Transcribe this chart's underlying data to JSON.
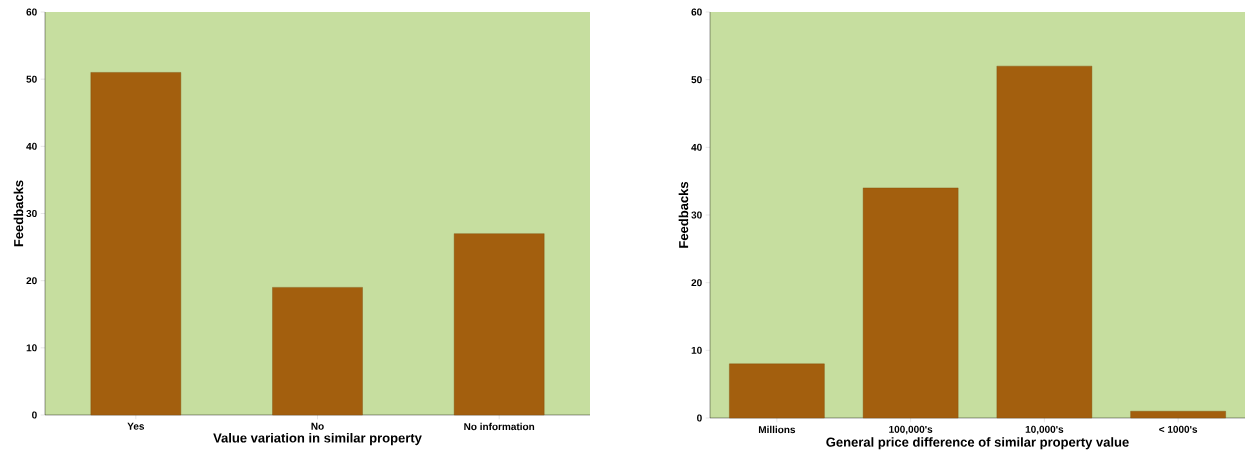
{
  "chart_data": [
    {
      "type": "bar",
      "categories": [
        "Yes",
        "No",
        "No information"
      ],
      "values": [
        51,
        19,
        27
      ],
      "color": "#a35f0e",
      "xlabel": "Value variation in similar property",
      "ylabel": "Feedbacks",
      "ylim": [
        0,
        60
      ],
      "yticks": [
        0,
        10,
        20,
        30,
        40,
        50,
        60
      ]
    },
    {
      "type": "bar",
      "categories": [
        "Millions",
        "100,000's",
        "10,000's",
        "< 1000's"
      ],
      "values": [
        8,
        34,
        52,
        1
      ],
      "color": "#a35f0e",
      "xlabel": "General price difference of similar property value",
      "ylabel": "Feedbacks",
      "ylim": [
        0,
        60
      ],
      "yticks": [
        0,
        10,
        20,
        30,
        40,
        50,
        60
      ]
    }
  ]
}
